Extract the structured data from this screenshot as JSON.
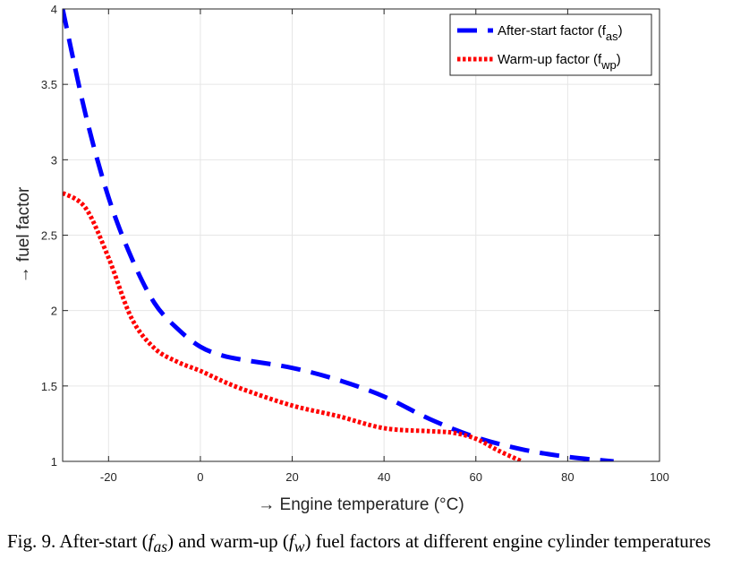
{
  "chart_data": {
    "type": "line",
    "xlabel": "→ Engine temperature (°C)",
    "ylabel": "→ fuel factor",
    "xlim": [
      -30,
      100
    ],
    "ylim": [
      1,
      4
    ],
    "xticks": [
      -20,
      0,
      20,
      40,
      60,
      80,
      100
    ],
    "yticks": [
      1,
      1.5,
      2,
      2.5,
      3,
      3.5,
      4
    ],
    "ytick_labels": [
      "1",
      "1.5",
      "2",
      "2.5",
      "3",
      "3.5",
      "4"
    ],
    "grid": true,
    "legend_position": "top-right",
    "series": [
      {
        "name": "After-start factor (f_as)",
        "legend_main": "After-start factor (f",
        "legend_sub": "as",
        "legend_end": ")",
        "color": "#0000ff",
        "style": "dashed",
        "x": [
          -30,
          -25,
          -20,
          -15,
          -10,
          -5,
          0,
          5,
          10,
          20,
          30,
          40,
          50,
          60,
          70,
          80,
          90
        ],
        "y": [
          4.0,
          3.3,
          2.75,
          2.35,
          2.05,
          1.88,
          1.76,
          1.7,
          1.67,
          1.62,
          1.54,
          1.43,
          1.28,
          1.16,
          1.08,
          1.03,
          1.0
        ]
      },
      {
        "name": "Warm-up factor (f_wp)",
        "legend_main": "Warm-up factor (f",
        "legend_sub": "wp",
        "legend_end": ")",
        "color": "#ff0000",
        "style": "dotted",
        "x": [
          -30,
          -25,
          -20,
          -15,
          -10,
          -5,
          0,
          5,
          10,
          20,
          30,
          40,
          50,
          55,
          60,
          65,
          70
        ],
        "y": [
          2.78,
          2.68,
          2.35,
          1.95,
          1.75,
          1.66,
          1.6,
          1.53,
          1.47,
          1.37,
          1.3,
          1.22,
          1.2,
          1.19,
          1.15,
          1.07,
          1.0
        ]
      }
    ]
  },
  "caption": {
    "lead": "Fig. 9.  After-start (",
    "var1": "f",
    "var1_sub": "as",
    "mid": ") and warm-up (",
    "var2": "f",
    "var2_sub": "w",
    "tail": ") fuel factors at different engine cylinder temperatures"
  }
}
